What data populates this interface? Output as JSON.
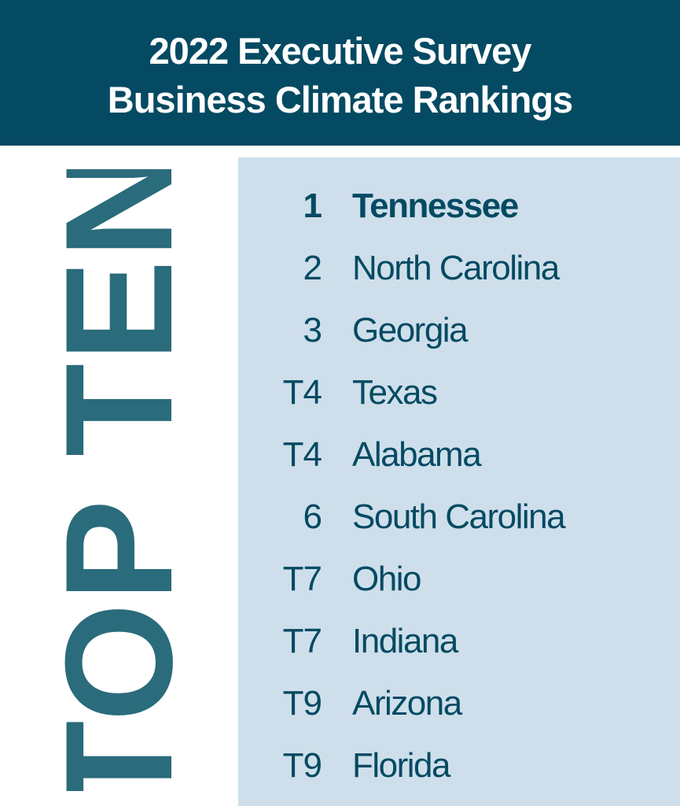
{
  "header": {
    "line1": "2022 Executive Survey",
    "line2": "Business Climate Rankings"
  },
  "side_label": "TOP TEN",
  "rankings": [
    {
      "rank": "1",
      "state": "Tennessee"
    },
    {
      "rank": "2",
      "state": "North Carolina"
    },
    {
      "rank": "3",
      "state": "Georgia"
    },
    {
      "rank": "T4",
      "state": "Texas"
    },
    {
      "rank": "T4",
      "state": "Alabama"
    },
    {
      "rank": "6",
      "state": "South Carolina"
    },
    {
      "rank": "T7",
      "state": "Ohio"
    },
    {
      "rank": "T7",
      "state": "Indiana"
    },
    {
      "rank": "T9",
      "state": "Arizona"
    },
    {
      "rank": "T9",
      "state": "Florida"
    }
  ],
  "colors": {
    "header_bg": "#044a62",
    "header_text": "#ffffff",
    "side_label": "#2a6b7c",
    "panel_bg": "#cedfeb",
    "list_text": "#044a62"
  }
}
